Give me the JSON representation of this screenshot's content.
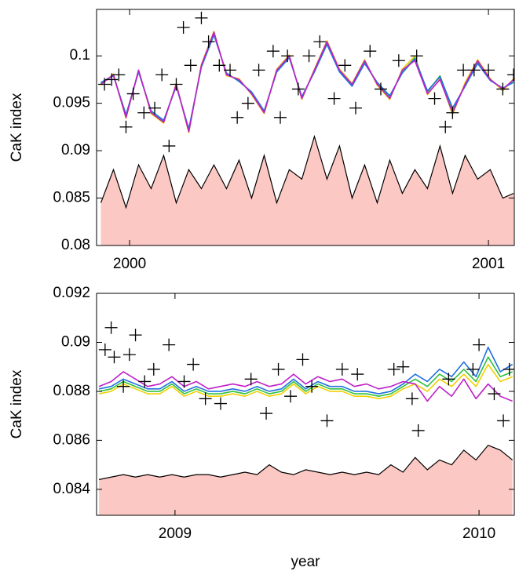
{
  "chart_data": [
    {
      "type": "line",
      "ylabel": "CaK index",
      "xlim": [
        1999.908,
        2001.072
      ],
      "xticks": [
        2000,
        2001
      ],
      "ylim": [
        0.08,
        0.1049
      ],
      "yticks": [
        0.08,
        0.085,
        0.09,
        0.095,
        0.1
      ],
      "x": [
        1999.92,
        1999.955,
        1999.99,
        2000.025,
        2000.06,
        2000.095,
        2000.13,
        2000.165,
        2000.2,
        2000.235,
        2000.27,
        2000.305,
        2000.34,
        2000.375,
        2000.41,
        2000.445,
        2000.48,
        2000.515,
        2000.55,
        2000.585,
        2000.62,
        2000.655,
        2000.69,
        2000.725,
        2000.76,
        2000.795,
        2000.83,
        2000.865,
        2000.9,
        2000.935,
        2000.97,
        2001.005,
        2001.04,
        2001.07
      ],
      "series": [
        {
          "style": "area",
          "color": "#fcc8c4",
          "values": [
            0.0845,
            0.088,
            0.084,
            0.0885,
            0.086,
            0.0895,
            0.0845,
            0.088,
            0.086,
            0.0885,
            0.086,
            0.089,
            0.085,
            0.0895,
            0.0845,
            0.088,
            0.087,
            0.0915,
            0.087,
            0.0905,
            0.085,
            0.0885,
            0.0845,
            0.089,
            0.0855,
            0.088,
            0.086,
            0.0905,
            0.0855,
            0.0895,
            0.087,
            0.088,
            0.085,
            0.0855
          ]
        },
        {
          "style": "line",
          "color": "#f0d000",
          "values": [
            0.0969,
            0.0981,
            0.0934,
            0.0985,
            0.0939,
            0.0929,
            0.0971,
            0.0919,
            0.0991,
            0.1026,
            0.0979,
            0.0976,
            0.0959,
            0.0939,
            0.0986,
            0.1001,
            0.0954,
            0.0986,
            0.1016,
            0.0986,
            0.0971,
            0.0996,
            0.0969,
            0.0954,
            0.0986,
            0.1,
            0.0959,
            0.0976,
            0.0938,
            0.0972,
            0.0996,
            0.0976,
            0.0963,
            0.0976
          ]
        },
        {
          "style": "line",
          "color": "#30c040",
          "values": [
            0.0971,
            0.098,
            0.0936,
            0.0984,
            0.0941,
            0.0931,
            0.0969,
            0.0922,
            0.0989,
            0.1023,
            0.0981,
            0.0974,
            0.0961,
            0.0941,
            0.0984,
            0.0999,
            0.0956,
            0.0984,
            0.1013,
            0.0984,
            0.0969,
            0.0993,
            0.0971,
            0.0957,
            0.0983,
            0.0998,
            0.0962,
            0.0979,
            0.0943,
            0.0969,
            0.0993,
            0.0975,
            0.0965,
            0.0974
          ]
        },
        {
          "style": "line",
          "color": "#2070e0",
          "values": [
            0.0972,
            0.0979,
            0.0938,
            0.0983,
            0.0942,
            0.0932,
            0.0968,
            0.0923,
            0.0988,
            0.1022,
            0.0982,
            0.0973,
            0.0962,
            0.0942,
            0.0983,
            0.0998,
            0.0957,
            0.0983,
            0.1012,
            0.0983,
            0.0968,
            0.0992,
            0.0972,
            0.0958,
            0.0982,
            0.0997,
            0.0963,
            0.0978,
            0.0945,
            0.0968,
            0.0992,
            0.0974,
            0.0966,
            0.0972
          ]
        },
        {
          "style": "line",
          "color": "#c020c8",
          "values": [
            0.097,
            0.098,
            0.0935,
            0.0985,
            0.094,
            0.093,
            0.097,
            0.092,
            0.099,
            0.1025,
            0.098,
            0.0975,
            0.096,
            0.094,
            0.0985,
            0.1,
            0.0955,
            0.0985,
            0.1015,
            0.0985,
            0.097,
            0.0995,
            0.097,
            0.0955,
            0.0985,
            0.0995,
            0.096,
            0.0975,
            0.094,
            0.097,
            0.0995,
            0.0975,
            0.0965,
            0.0975
          ]
        },
        {
          "style": "marker",
          "color": "#000000",
          "x": [
            1999.93,
            1999.95,
            1999.97,
            1999.99,
            2000.01,
            2000.04,
            2000.07,
            2000.09,
            2000.11,
            2000.13,
            2000.15,
            2000.17,
            2000.2,
            2000.22,
            2000.25,
            2000.28,
            2000.3,
            2000.33,
            2000.36,
            2000.4,
            2000.42,
            2000.44,
            2000.47,
            2000.5,
            2000.53,
            2000.57,
            2000.6,
            2000.63,
            2000.67,
            2000.7,
            2000.75,
            2000.8,
            2000.85,
            2000.88,
            2000.9,
            2000.93,
            2000.96,
            2001.0,
            2001.04,
            2001.07
          ],
          "values": [
            0.097,
            0.0975,
            0.098,
            0.0925,
            0.096,
            0.094,
            0.0945,
            0.098,
            0.0905,
            0.097,
            0.103,
            0.099,
            0.104,
            0.1015,
            0.099,
            0.0985,
            0.0935,
            0.095,
            0.0985,
            0.1005,
            0.0935,
            0.1,
            0.0965,
            0.1,
            0.1015,
            0.0955,
            0.099,
            0.0945,
            0.1005,
            0.0965,
            0.0995,
            0.1,
            0.0955,
            0.0925,
            0.094,
            0.0985,
            0.0985,
            0.0985,
            0.0965,
            0.098
          ]
        }
      ]
    },
    {
      "type": "line",
      "ylabel": "CaK index",
      "xlabel": "year",
      "xlim": [
        2008.742,
        2010.116
      ],
      "xticks": [
        2009,
        2010
      ],
      "ylim": [
        0.08294,
        0.092
      ],
      "yticks": [
        0.084,
        0.086,
        0.088,
        0.09,
        0.092
      ],
      "x": [
        2008.75,
        2008.79,
        2008.83,
        2008.87,
        2008.91,
        2008.95,
        2008.99,
        2009.03,
        2009.07,
        2009.11,
        2009.15,
        2009.19,
        2009.23,
        2009.27,
        2009.31,
        2009.35,
        2009.39,
        2009.43,
        2009.47,
        2009.51,
        2009.55,
        2009.59,
        2009.63,
        2009.67,
        2009.71,
        2009.75,
        2009.79,
        2009.83,
        2009.87,
        2009.91,
        2009.95,
        2009.99,
        2010.03,
        2010.07,
        2010.11
      ],
      "series": [
        {
          "style": "area",
          "color": "#fcc8c4",
          "values": [
            0.0844,
            0.0845,
            0.0846,
            0.0845,
            0.0846,
            0.0845,
            0.0846,
            0.0845,
            0.0846,
            0.0846,
            0.0845,
            0.0846,
            0.0847,
            0.0846,
            0.085,
            0.0847,
            0.0846,
            0.0848,
            0.0847,
            0.0846,
            0.0847,
            0.0846,
            0.0847,
            0.0846,
            0.085,
            0.0847,
            0.0853,
            0.0848,
            0.0852,
            0.085,
            0.0856,
            0.0852,
            0.0858,
            0.0856,
            0.0852
          ]
        },
        {
          "style": "line",
          "color": "#f0d000",
          "values": [
            0.0879,
            0.088,
            0.0883,
            0.0881,
            0.0879,
            0.0879,
            0.0882,
            0.0878,
            0.088,
            0.0878,
            0.0878,
            0.0879,
            0.0878,
            0.088,
            0.0878,
            0.0879,
            0.0883,
            0.0879,
            0.0882,
            0.088,
            0.088,
            0.0878,
            0.0878,
            0.0877,
            0.0878,
            0.0881,
            0.0883,
            0.088,
            0.0885,
            0.0882,
            0.0887,
            0.0882,
            0.0891,
            0.0884,
            0.0886
          ]
        },
        {
          "style": "line",
          "color": "#30c040",
          "values": [
            0.088,
            0.0881,
            0.0884,
            0.0882,
            0.088,
            0.088,
            0.0883,
            0.0879,
            0.0881,
            0.0879,
            0.0879,
            0.088,
            0.0879,
            0.0881,
            0.0879,
            0.088,
            0.0884,
            0.088,
            0.0883,
            0.0881,
            0.0881,
            0.0879,
            0.0879,
            0.0878,
            0.0879,
            0.0882,
            0.0885,
            0.0882,
            0.0887,
            0.0884,
            0.0889,
            0.0884,
            0.0894,
            0.0886,
            0.0888
          ]
        },
        {
          "style": "line",
          "color": "#2070e0",
          "values": [
            0.0881,
            0.0882,
            0.0885,
            0.0883,
            0.0881,
            0.0881,
            0.0884,
            0.088,
            0.0882,
            0.088,
            0.088,
            0.0881,
            0.088,
            0.0882,
            0.088,
            0.0881,
            0.0885,
            0.0881,
            0.0884,
            0.0882,
            0.0882,
            0.088,
            0.088,
            0.0879,
            0.088,
            0.0883,
            0.0887,
            0.0884,
            0.0889,
            0.0886,
            0.0892,
            0.0886,
            0.0898,
            0.0888,
            0.0891
          ]
        },
        {
          "style": "line",
          "color": "#c020c8",
          "values": [
            0.0882,
            0.0884,
            0.0888,
            0.0885,
            0.0882,
            0.0883,
            0.0886,
            0.0882,
            0.0884,
            0.0881,
            0.0882,
            0.0883,
            0.0882,
            0.0884,
            0.0882,
            0.0883,
            0.0887,
            0.0883,
            0.0886,
            0.0884,
            0.0885,
            0.0882,
            0.0883,
            0.0881,
            0.0882,
            0.0884,
            0.0883,
            0.0876,
            0.0882,
            0.0878,
            0.0885,
            0.0877,
            0.0883,
            0.0878,
            0.0876
          ]
        },
        {
          "style": "marker",
          "color": "#000000",
          "x": [
            2008.77,
            2008.79,
            2008.8,
            2008.83,
            2008.85,
            2008.87,
            2008.9,
            2008.93,
            2008.98,
            2009.03,
            2009.06,
            2009.1,
            2009.15,
            2009.25,
            2009.3,
            2009.34,
            2009.38,
            2009.42,
            2009.45,
            2009.5,
            2009.55,
            2009.6,
            2009.72,
            2009.75,
            2009.78,
            2009.8,
            2009.9,
            2009.98,
            2010.0,
            2010.05,
            2010.08,
            2010.1
          ],
          "values": [
            0.0897,
            0.0906,
            0.0894,
            0.0882,
            0.0895,
            0.0903,
            0.0884,
            0.0889,
            0.0899,
            0.0884,
            0.0891,
            0.0877,
            0.0875,
            0.0885,
            0.0871,
            0.0889,
            0.0878,
            0.0893,
            0.0882,
            0.0868,
            0.0889,
            0.0887,
            0.0889,
            0.089,
            0.0877,
            0.0864,
            0.0885,
            0.0889,
            0.0899,
            0.0879,
            0.0868,
            0.0889
          ]
        }
      ]
    }
  ]
}
